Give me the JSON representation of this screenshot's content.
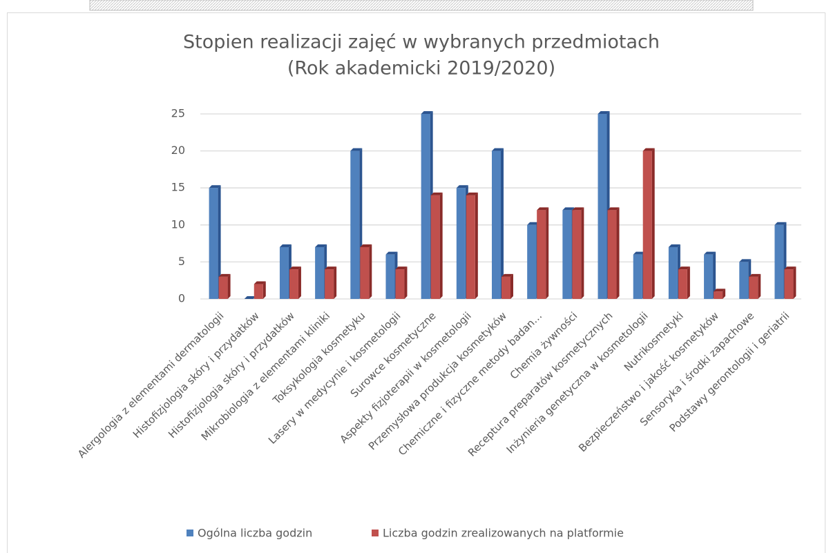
{
  "chart_data": {
    "type": "bar3d",
    "title": [
      "Stopien realizacji zajęć w wybranych przedmiotach",
      "(Rok akademicki 2019/2020)"
    ],
    "categories": [
      "Alergologia z elementami dermatologii",
      "Histofizjologia skóry i przydatków",
      "Histofizjologia skóry i przydatków",
      "Mikrobiologia z elementami kliniki",
      "Toksykologia kosmetyku",
      "Lasery w medycynie i kosmetologii",
      "Surowce kosmetyczne",
      "Aspekty fizjoterapii w kosmetologii",
      "Przemysłowa produkcja kosmetyków",
      "Chemiczne i fizyczne metody badan…",
      "Chemia żywności",
      "Receptura preparatów kosmetycznych",
      "Inżynieria genetyczna w kosmetologii",
      "Nutrikosmetyki",
      "Bezpieczeństwo i jakość kosmetyków",
      "Sensoryka i środki zapachowe",
      "Podstawy gerontologii i geriatrii"
    ],
    "series": [
      {
        "name": "Ogólna liczba godzin",
        "color": "#4f81bd",
        "side": "#2c5590",
        "values": [
          15,
          0,
          7,
          7,
          20,
          6,
          25,
          15,
          20,
          10,
          12,
          25,
          6,
          7,
          6,
          5,
          10
        ]
      },
      {
        "name": "Liczba godzin zrealizowanych na platformie",
        "color": "#c0504d",
        "side": "#8a2b29",
        "values": [
          3,
          2,
          4,
          4,
          7,
          4,
          14,
          14,
          3,
          12,
          12,
          12,
          20,
          4,
          1,
          3,
          4
        ]
      }
    ],
    "ylim": [
      0,
      25
    ],
    "yticks": [
      0,
      5,
      10,
      15,
      20,
      25
    ],
    "grid": true,
    "legend": "bottom"
  }
}
